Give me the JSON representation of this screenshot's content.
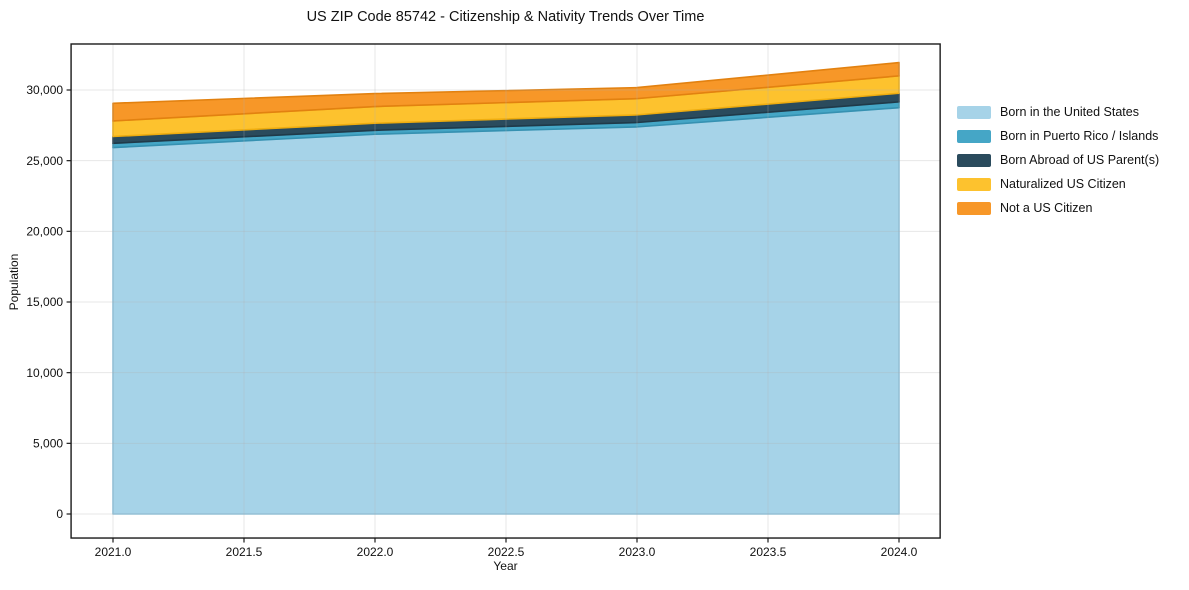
{
  "chart_data": {
    "type": "area",
    "stacked": true,
    "title": "US ZIP Code 85742 - Citizenship & Nativity Trends Over Time",
    "xlabel": "Year",
    "ylabel": "Population",
    "x": [
      2021,
      2022,
      2023,
      2024
    ],
    "series": [
      {
        "name": "Born in the United States",
        "color": "#a6d3e8",
        "edge_color": "#8ec4de",
        "values": [
          25930,
          26870,
          27390,
          28750
        ]
      },
      {
        "name": "Born in Puerto Rico / Islands",
        "color": "#45a6c6",
        "edge_color": "#3691b1",
        "values": [
          300,
          280,
          310,
          410
        ]
      },
      {
        "name": "Born Abroad of US Parent(s)",
        "color": "#2a4b5d",
        "edge_color": "#203a49",
        "values": [
          480,
          500,
          540,
          610
        ]
      },
      {
        "name": "Naturalized US Citizen",
        "color": "#fdc22e",
        "edge_color": "#efad0f",
        "values": [
          1100,
          1180,
          1150,
          1230
        ]
      },
      {
        "name": "Not a US Citizen",
        "color": "#f79728",
        "edge_color": "#e28110",
        "values": [
          1250,
          920,
          780,
          940
        ]
      }
    ],
    "x_ticks": [
      {
        "value": 2021.0,
        "label": "2021.0"
      },
      {
        "value": 2021.5,
        "label": "2021.5"
      },
      {
        "value": 2022.0,
        "label": "2022.0"
      },
      {
        "value": 2022.5,
        "label": "2022.5"
      },
      {
        "value": 2023.0,
        "label": "2023.0"
      },
      {
        "value": 2023.5,
        "label": "2023.5"
      },
      {
        "value": 2024.0,
        "label": "2024.0"
      }
    ],
    "y_ticks": [
      {
        "value": 0,
        "label": "0"
      },
      {
        "value": 5000,
        "label": "5,000"
      },
      {
        "value": 10000,
        "label": "10,000"
      },
      {
        "value": 15000,
        "label": "15,000"
      },
      {
        "value": 20000,
        "label": "20,000"
      },
      {
        "value": 25000,
        "label": "25,000"
      },
      {
        "value": 30000,
        "label": "30,000"
      }
    ],
    "xlim": [
      2020.84,
      2024.157
    ],
    "ylim": [
      -1700,
      33255
    ],
    "grid": true,
    "legend_position": "right",
    "frame_color": "#1a1a1a",
    "grid_color": "#b0b0b0"
  }
}
